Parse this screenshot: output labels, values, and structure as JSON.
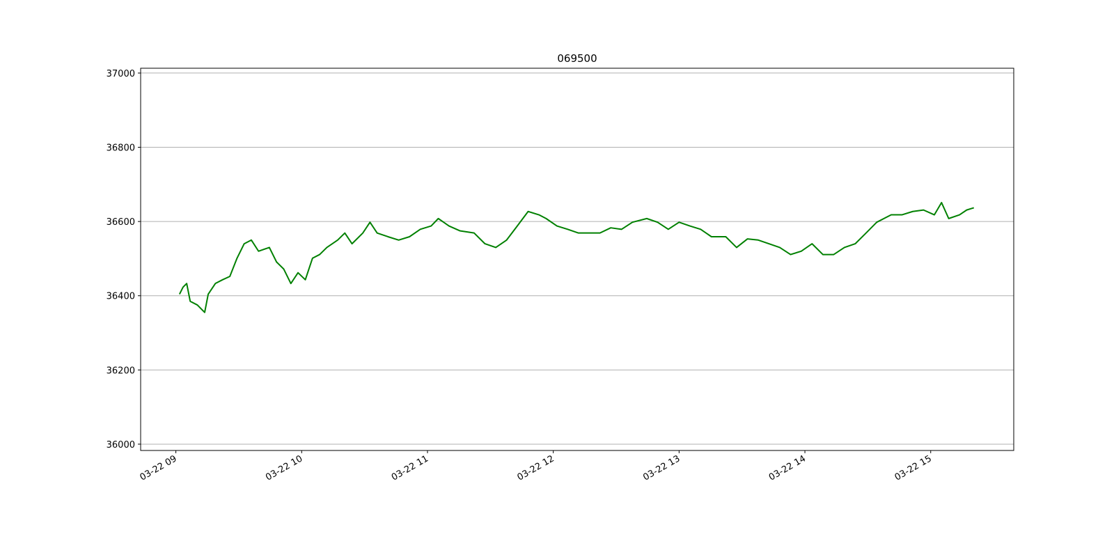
{
  "chart_data": {
    "type": "line",
    "title": "069500",
    "x": [
      9.029,
      9.057,
      9.086,
      9.114,
      9.171,
      9.229,
      9.257,
      9.314,
      9.371,
      9.429,
      9.486,
      9.543,
      9.6,
      9.657,
      9.743,
      9.8,
      9.857,
      9.914,
      9.971,
      10.029,
      10.086,
      10.143,
      10.2,
      10.286,
      10.343,
      10.4,
      10.486,
      10.543,
      10.6,
      10.686,
      10.771,
      10.857,
      10.943,
      11.029,
      11.086,
      11.171,
      11.257,
      11.371,
      11.457,
      11.543,
      11.629,
      11.714,
      11.8,
      11.886,
      11.943,
      12.029,
      12.114,
      12.2,
      12.286,
      12.371,
      12.457,
      12.543,
      12.629,
      12.743,
      12.829,
      12.914,
      13.0,
      13.086,
      13.171,
      13.257,
      13.371,
      13.457,
      13.543,
      13.629,
      13.714,
      13.8,
      13.886,
      13.971,
      14.057,
      14.143,
      14.229,
      14.314,
      14.4,
      14.486,
      14.571,
      14.686,
      14.771,
      14.857,
      14.943,
      15.029,
      15.086,
      15.143,
      15.229,
      15.286,
      15.343
    ],
    "series": [
      {
        "name": "069500",
        "color": "#008000",
        "values": [
          36404,
          36423,
          36433,
          36385,
          36375,
          36355,
          36404,
          36433,
          36443,
          36452,
          36501,
          36540,
          36550,
          36520,
          36530,
          36491,
          36472,
          36433,
          36462,
          36443,
          36501,
          36511,
          36530,
          36550,
          36569,
          36540,
          36569,
          36598,
          36569,
          36559,
          36550,
          36559,
          36579,
          36588,
          36608,
          36588,
          36575,
          36569,
          36540,
          36530,
          36550,
          36588,
          36627,
          36618,
          36608,
          36588,
          36579,
          36569,
          36569,
          36569,
          36583,
          36579,
          36598,
          36608,
          36598,
          36579,
          36598,
          36588,
          36579,
          36559,
          36559,
          36530,
          36553,
          36550,
          36540,
          36530,
          36511,
          36520,
          36540,
          36511,
          36511,
          36530,
          36540,
          36569,
          36598,
          36618,
          36618,
          36627,
          36631,
          36618,
          36651,
          36608,
          36618,
          36631,
          36637
        ]
      }
    ],
    "xlim": [
      8.72,
      15.66
    ],
    "xticks": [
      {
        "value": 9,
        "label": "03-22 09"
      },
      {
        "value": 10,
        "label": "03-22 10"
      },
      {
        "value": 11,
        "label": "03-22 11"
      },
      {
        "value": 12,
        "label": "03-22 12"
      },
      {
        "value": 13,
        "label": "03-22 13"
      },
      {
        "value": 14,
        "label": "03-22 14"
      },
      {
        "value": 15,
        "label": "03-22 15"
      }
    ],
    "ylim": [
      35983,
      37013
    ],
    "yticks": [
      36000,
      36200,
      36400,
      36600,
      36800,
      37000
    ],
    "grid": true
  }
}
